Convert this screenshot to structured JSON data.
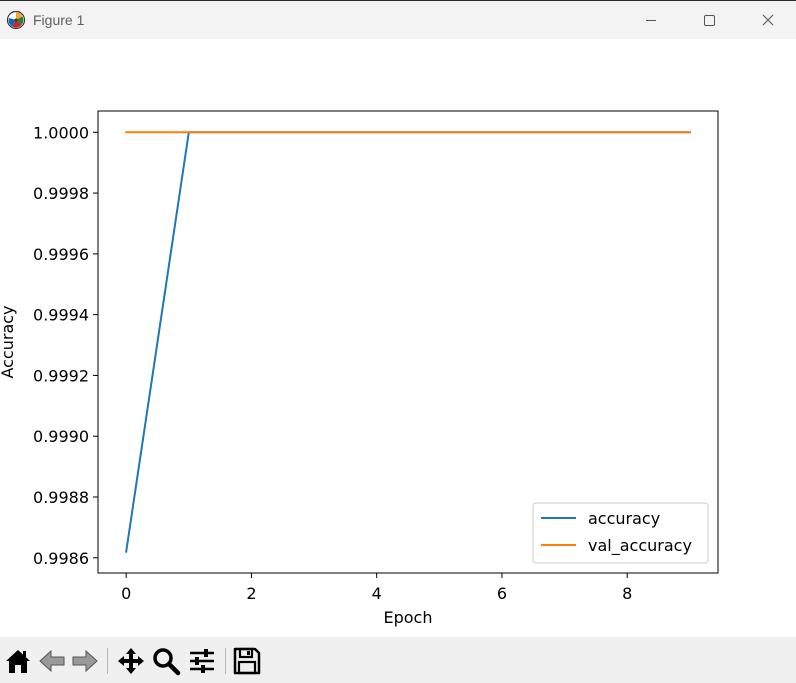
{
  "window": {
    "title": "Figure 1",
    "controls": [
      "minimize-icon",
      "maximize-icon",
      "close-icon"
    ]
  },
  "toolbar": {
    "tools": [
      "home-icon",
      "back-arrow-icon",
      "forward-arrow-icon",
      "pan-icon",
      "zoom-icon",
      "configure-subplots-icon",
      "save-icon"
    ]
  },
  "chart_data": {
    "type": "line",
    "title": "",
    "xlabel": "Epoch",
    "ylabel": "Accuracy",
    "xlim": [
      -0.45,
      9.45
    ],
    "ylim": [
      0.99855,
      1.00007
    ],
    "xticks": [
      0,
      2,
      4,
      6,
      8
    ],
    "xtick_labels": [
      "0",
      "2",
      "4",
      "6",
      "8"
    ],
    "yticks": [
      0.9986,
      0.9988,
      0.999,
      0.9992,
      0.9994,
      0.9996,
      0.9998,
      1.0
    ],
    "ytick_labels": [
      "0.9986",
      "0.9988",
      "0.9990",
      "0.9992",
      "0.9994",
      "0.9996",
      "0.9998",
      "1.0000"
    ],
    "grid": false,
    "legend_position": "lower-right",
    "x": [
      0,
      1,
      2,
      3,
      4,
      5,
      6,
      7,
      8,
      9
    ],
    "series": [
      {
        "name": "accuracy",
        "color": "#1f77b4",
        "values": [
          0.99862,
          1.0,
          1.0,
          1.0,
          1.0,
          1.0,
          1.0,
          1.0,
          1.0,
          1.0
        ]
      },
      {
        "name": "val_accuracy",
        "color": "#ff7f0e",
        "values": [
          1.0,
          1.0,
          1.0,
          1.0,
          1.0,
          1.0,
          1.0,
          1.0,
          1.0,
          1.0
        ]
      }
    ]
  }
}
